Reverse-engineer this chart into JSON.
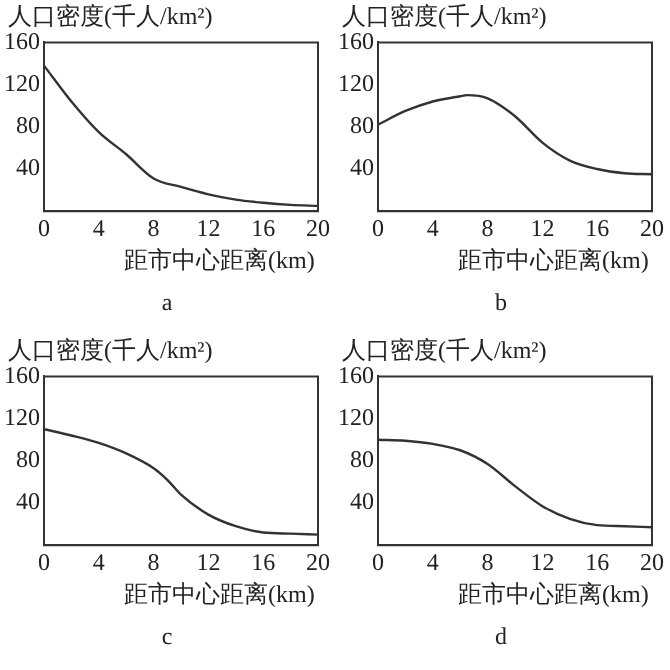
{
  "chart_data": [
    {
      "type": "line",
      "ylabel": "人口密度(千人/km²)",
      "xlabel": "距市中心距离(km)",
      "annotations": [
        "a"
      ],
      "x": [
        0,
        2,
        4,
        6,
        8,
        10,
        12,
        14,
        16,
        18,
        20
      ],
      "series": [
        {
          "color": "#333333",
          "values": [
            138,
            104,
            75,
            54,
            31,
            23,
            16,
            11,
            8,
            6,
            5
          ]
        }
      ],
      "xlim": [
        0,
        20
      ],
      "ylim": [
        0,
        160
      ],
      "xticks": [
        0,
        4,
        8,
        12,
        16,
        20
      ],
      "yticks": [
        40,
        80,
        120,
        160
      ],
      "grid": false,
      "legend": false,
      "marker": "none",
      "line_style": "solid"
    },
    {
      "type": "line",
      "ylabel": "人口密度(千人/km²)",
      "xlabel": "距市中心距离(km)",
      "annotations": [
        "b"
      ],
      "x": [
        0,
        2,
        4,
        6,
        6.5,
        8,
        10,
        12,
        14,
        16,
        18,
        20
      ],
      "series": [
        {
          "color": "#333333",
          "values": [
            82,
            95,
            104,
            109,
            110,
            107,
            90,
            65,
            48,
            40,
            36,
            35
          ]
        }
      ],
      "xlim": [
        0,
        20
      ],
      "ylim": [
        0,
        160
      ],
      "xticks": [
        0,
        4,
        8,
        12,
        16,
        20
      ],
      "yticks": [
        40,
        80,
        120,
        160
      ],
      "grid": false,
      "legend": false,
      "marker": "none",
      "line_style": "solid"
    },
    {
      "type": "line",
      "ylabel": "人口密度(千人/km²)",
      "xlabel": "距市中心距离(km)",
      "annotations": [
        "c"
      ],
      "x": [
        0,
        2,
        4,
        6,
        8,
        9,
        10,
        12,
        14,
        16,
        18,
        20
      ],
      "series": [
        {
          "color": "#333333",
          "values": [
            110,
            104,
            97,
            87,
            73,
            62,
            48,
            29,
            18,
            12,
            11,
            10
          ]
        }
      ],
      "xlim": [
        0,
        20
      ],
      "ylim": [
        0,
        160
      ],
      "xticks": [
        0,
        4,
        8,
        12,
        16,
        20
      ],
      "yticks": [
        40,
        80,
        120,
        160
      ],
      "grid": false,
      "legend": false,
      "marker": "none",
      "line_style": "solid"
    },
    {
      "type": "line",
      "ylabel": "人口密度(千人/km²)",
      "xlabel": "距市中心距离(km)",
      "annotations": [
        "d"
      ],
      "x": [
        0,
        2,
        4,
        6,
        8,
        10,
        12,
        14,
        16,
        18,
        20
      ],
      "series": [
        {
          "color": "#333333",
          "values": [
            100,
            99,
            96,
            90,
            77,
            56,
            37,
            25,
            19,
            18,
            17
          ]
        }
      ],
      "xlim": [
        0,
        20
      ],
      "ylim": [
        0,
        160
      ],
      "xticks": [
        0,
        4,
        8,
        12,
        16,
        20
      ],
      "yticks": [
        40,
        80,
        120,
        160
      ],
      "grid": false,
      "legend": false,
      "marker": "none",
      "line_style": "solid"
    }
  ]
}
